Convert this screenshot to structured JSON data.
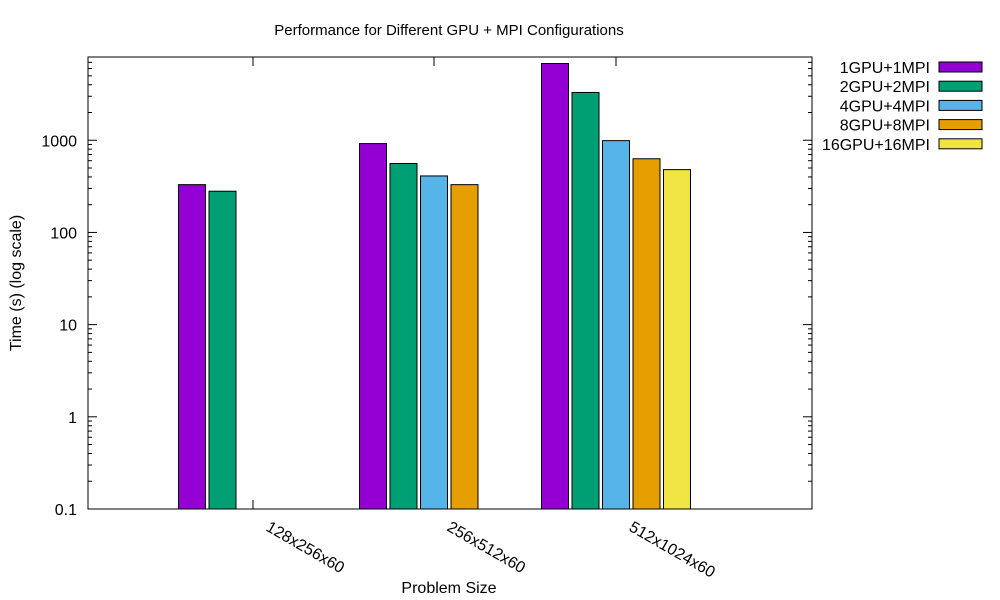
{
  "chart_data": {
    "type": "bar",
    "title": "Performance for Different GPU + MPI Configurations",
    "xlabel": "Problem Size",
    "ylabel": "Time (s) (log scale)",
    "y_scale": "log",
    "ylim": [
      0.1,
      8000
    ],
    "y_ticks": [
      0.1,
      1,
      10,
      100,
      1000
    ],
    "y_tick_labels": [
      "0.1",
      "1",
      "10",
      "100",
      "1000"
    ],
    "categories": [
      "128x256x60",
      "256x512x60",
      "512x1024x60"
    ],
    "series": [
      {
        "name": "1GPU+1MPI",
        "color": "#9400d3",
        "values": [
          330,
          920,
          6800
        ]
      },
      {
        "name": "2GPU+2MPI",
        "color": "#009e73",
        "values": [
          280,
          560,
          3300
        ]
      },
      {
        "name": "4GPU+4MPI",
        "color": "#56b4e9",
        "values": [
          null,
          410,
          990
        ]
      },
      {
        "name": "8GPU+8MPI",
        "color": "#e69f00",
        "values": [
          null,
          330,
          630
        ]
      },
      {
        "name": "16GPU+16MPI",
        "color": "#f0e442",
        "values": [
          null,
          null,
          480
        ]
      }
    ],
    "grid": false,
    "legend_position": "top-right outside"
  }
}
